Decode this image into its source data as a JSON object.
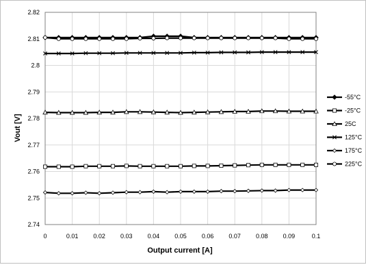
{
  "chart_data": {
    "type": "line",
    "xlabel": "Output current [A]",
    "ylabel": "Vout [V]",
    "xlim": [
      0,
      0.1
    ],
    "ylim": [
      2.74,
      2.82
    ],
    "x_ticks": [
      "0",
      "0.01",
      "0.02",
      "0.03",
      "0.04",
      "0.05",
      "0.06",
      "0.07",
      "0.08",
      "0.09",
      "0.1"
    ],
    "y_ticks": [
      "2.74",
      "2.75",
      "2.76",
      "2.77",
      "2.78",
      "2.79",
      "2.8",
      "2.81",
      "2.82"
    ],
    "grid": true,
    "legend_position": "right",
    "x": [
      0,
      0.005,
      0.01,
      0.015,
      0.02,
      0.025,
      0.03,
      0.035,
      0.04,
      0.045,
      0.05,
      0.055,
      0.06,
      0.065,
      0.07,
      0.075,
      0.08,
      0.085,
      0.09,
      0.095,
      0.1
    ],
    "series": [
      {
        "name": "-55°C",
        "marker": "filled-diamond",
        "values": [
          2.8105,
          2.8105,
          2.8105,
          2.8105,
          2.8105,
          2.8105,
          2.8105,
          2.8105,
          2.811,
          2.811,
          2.811,
          2.8105,
          2.8105,
          2.8105,
          2.8105,
          2.8105,
          2.8105,
          2.8105,
          2.8105,
          2.8105,
          2.8105
        ]
      },
      {
        "name": "-25°C",
        "marker": "square",
        "values": [
          2.7618,
          2.7618,
          2.7618,
          2.762,
          2.762,
          2.762,
          2.7621,
          2.762,
          2.762,
          2.762,
          2.762,
          2.7621,
          2.7621,
          2.7622,
          2.7623,
          2.7624,
          2.7625,
          2.7625,
          2.7625,
          2.7625,
          2.7625
        ]
      },
      {
        "name": "25C",
        "marker": "triangle",
        "values": [
          2.7823,
          2.7822,
          2.7822,
          2.7822,
          2.7823,
          2.7823,
          2.7825,
          2.7825,
          2.7824,
          2.7823,
          2.7822,
          2.7823,
          2.7824,
          2.7825,
          2.7826,
          2.7826,
          2.7828,
          2.7828,
          2.7827,
          2.7827,
          2.7827
        ]
      },
      {
        "name": "125°C",
        "marker": "x",
        "values": [
          2.8045,
          2.8045,
          2.8045,
          2.8046,
          2.8046,
          2.8046,
          2.8047,
          2.8047,
          2.8047,
          2.8047,
          2.8047,
          2.8048,
          2.8048,
          2.8049,
          2.8049,
          2.8049,
          2.805,
          2.805,
          2.805,
          2.805,
          2.805
        ]
      },
      {
        "name": "175°C",
        "marker": "star",
        "values": [
          2.7521,
          2.7518,
          2.7518,
          2.752,
          2.7518,
          2.752,
          2.7522,
          2.7522,
          2.7524,
          2.7522,
          2.7524,
          2.7524,
          2.7524,
          2.7526,
          2.7526,
          2.7527,
          2.7528,
          2.7528,
          2.753,
          2.753,
          2.753
        ]
      },
      {
        "name": "225°C",
        "marker": "circle",
        "values": [
          2.8105,
          2.81,
          2.81,
          2.81,
          2.81,
          2.81,
          2.81,
          2.8102,
          2.8102,
          2.8103,
          2.8103,
          2.8103,
          2.8103,
          2.8103,
          2.8103,
          2.8103,
          2.8103,
          2.8103,
          2.81,
          2.81,
          2.81
        ]
      }
    ]
  }
}
